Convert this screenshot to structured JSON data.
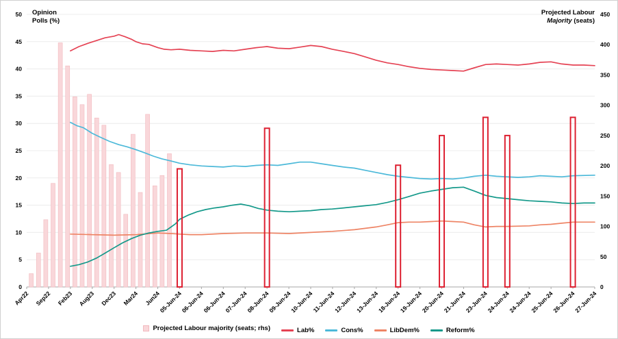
{
  "titles": {
    "left_line1": "Opinion",
    "left_line2": "Polls (%)",
    "right_line1": "Projected Labour",
    "right_line2_italic": "Majority",
    "right_line2_rest": " (seats)"
  },
  "chart_data": {
    "type": "line+bar",
    "left_axis": {
      "title": "Opinion Polls (%)",
      "min": 0,
      "max": 50,
      "ticks": [
        0,
        5,
        10,
        15,
        20,
        25,
        30,
        35,
        40,
        45,
        50
      ]
    },
    "right_axis": {
      "title": "Projected Labour Majority (seats)",
      "min": 0,
      "max": 450,
      "ticks": [
        0,
        50,
        100,
        150,
        200,
        250,
        300,
        350,
        400,
        450
      ]
    },
    "x_tick_labels": [
      "Apr22",
      "Sep22",
      "Feb23",
      "Aug23",
      "Dec23",
      "Mar24",
      "Jun24",
      "05-Jun-24",
      "06-Jun-24",
      "06-Jun-24",
      "07-Jun-24",
      "08-Jun-24",
      "09-Jun-24",
      "10-Jun-24",
      "11-Jun-24",
      "12-Jun-24",
      "13-Jun-24",
      "18-Jun-24",
      "19-Jun-24",
      "20-Jun-24",
      "21-Jun-24",
      "23-Jun-24",
      "24-Jun-24",
      "24-Jun-24",
      "25-Jun-24",
      "26-Jun-24",
      "27-Jun-24"
    ],
    "bars_historical": {
      "name": "Projected Labour majority (seats; rhs)",
      "fill": "#f9d7da",
      "border": "#f2b9be",
      "values": [
        {
          "x": 0.008,
          "seats": 22
        },
        {
          "x": 0.0208,
          "seats": 56
        },
        {
          "x": 0.0336,
          "seats": 111
        },
        {
          "x": 0.0464,
          "seats": 171
        },
        {
          "x": 0.0592,
          "seats": 403
        },
        {
          "x": 0.072,
          "seats": 365
        },
        {
          "x": 0.0848,
          "seats": 314
        },
        {
          "x": 0.0976,
          "seats": 301
        },
        {
          "x": 0.1104,
          "seats": 318
        },
        {
          "x": 0.1232,
          "seats": 279
        },
        {
          "x": 0.136,
          "seats": 267
        },
        {
          "x": 0.1488,
          "seats": 202
        },
        {
          "x": 0.1616,
          "seats": 189
        },
        {
          "x": 0.1744,
          "seats": 120
        },
        {
          "x": 0.1872,
          "seats": 252
        },
        {
          "x": 0.2,
          "seats": 156
        },
        {
          "x": 0.2128,
          "seats": 285
        },
        {
          "x": 0.2256,
          "seats": 167
        },
        {
          "x": 0.2384,
          "seats": 184
        },
        {
          "x": 0.2512,
          "seats": 220
        }
      ]
    },
    "bars_events": {
      "name": "Projected Labour majority (seats; rhs)",
      "color": "#dd1f30",
      "values": [
        {
          "x_tick": 7,
          "date": "05-Jun-24",
          "seats": 195
        },
        {
          "x_tick": 11,
          "date": "08-Jun-24",
          "seats": 262
        },
        {
          "x_tick": 17,
          "date": "18-Jun-24",
          "seats": 201
        },
        {
          "x_tick": 19,
          "date": "20-Jun-24",
          "seats": 250
        },
        {
          "x_tick": 21,
          "date": "23-Jun-24",
          "seats": 280
        },
        {
          "x_tick": 22,
          "date": "24-Jun-24",
          "seats": 250
        },
        {
          "x_tick": 25,
          "date": "26-Jun-24",
          "seats": 280
        }
      ]
    },
    "series": [
      {
        "name": "Lab%",
        "color": "#e54253",
        "points": [
          [
            0.077,
            43.3
          ],
          [
            0.092,
            44.1
          ],
          [
            0.108,
            44.7
          ],
          [
            0.123,
            45.2
          ],
          [
            0.138,
            45.7
          ],
          [
            0.154,
            46.0
          ],
          [
            0.162,
            46.3
          ],
          [
            0.173,
            45.9
          ],
          [
            0.185,
            45.4
          ],
          [
            0.192,
            45.0
          ],
          [
            0.204,
            44.6
          ],
          [
            0.215,
            44.5
          ],
          [
            0.231,
            43.9
          ],
          [
            0.242,
            43.6
          ],
          [
            0.254,
            43.5
          ],
          [
            0.269,
            43.6
          ],
          [
            0.288,
            43.4
          ],
          [
            0.308,
            43.3
          ],
          [
            0.327,
            43.2
          ],
          [
            0.346,
            43.4
          ],
          [
            0.365,
            43.3
          ],
          [
            0.385,
            43.6
          ],
          [
            0.404,
            43.9
          ],
          [
            0.423,
            44.1
          ],
          [
            0.442,
            43.8
          ],
          [
            0.462,
            43.7
          ],
          [
            0.481,
            44.0
          ],
          [
            0.5,
            44.3
          ],
          [
            0.519,
            44.1
          ],
          [
            0.538,
            43.6
          ],
          [
            0.558,
            43.2
          ],
          [
            0.577,
            42.8
          ],
          [
            0.596,
            42.2
          ],
          [
            0.615,
            41.6
          ],
          [
            0.635,
            41.1
          ],
          [
            0.654,
            40.8
          ],
          [
            0.673,
            40.4
          ],
          [
            0.692,
            40.1
          ],
          [
            0.712,
            39.9
          ],
          [
            0.731,
            39.8
          ],
          [
            0.75,
            39.7
          ],
          [
            0.769,
            39.6
          ],
          [
            0.788,
            40.2
          ],
          [
            0.808,
            40.8
          ],
          [
            0.827,
            40.9
          ],
          [
            0.846,
            40.8
          ],
          [
            0.865,
            40.7
          ],
          [
            0.885,
            40.9
          ],
          [
            0.904,
            41.2
          ],
          [
            0.923,
            41.3
          ],
          [
            0.942,
            40.9
          ],
          [
            0.962,
            40.7
          ],
          [
            0.981,
            40.7
          ],
          [
            1.0,
            40.6
          ]
        ]
      },
      {
        "name": "Cons%",
        "color": "#4cb9d9",
        "points": [
          [
            0.077,
            30.2
          ],
          [
            0.088,
            29.6
          ],
          [
            0.1,
            29.2
          ],
          [
            0.115,
            28.2
          ],
          [
            0.131,
            27.4
          ],
          [
            0.146,
            26.7
          ],
          [
            0.162,
            26.1
          ],
          [
            0.177,
            25.7
          ],
          [
            0.192,
            25.2
          ],
          [
            0.208,
            24.6
          ],
          [
            0.223,
            24.0
          ],
          [
            0.238,
            23.5
          ],
          [
            0.254,
            23.1
          ],
          [
            0.269,
            22.7
          ],
          [
            0.288,
            22.4
          ],
          [
            0.308,
            22.2
          ],
          [
            0.327,
            22.1
          ],
          [
            0.346,
            22.0
          ],
          [
            0.365,
            22.2
          ],
          [
            0.385,
            22.1
          ],
          [
            0.404,
            22.3
          ],
          [
            0.423,
            22.4
          ],
          [
            0.442,
            22.3
          ],
          [
            0.462,
            22.6
          ],
          [
            0.481,
            22.9
          ],
          [
            0.5,
            22.9
          ],
          [
            0.519,
            22.6
          ],
          [
            0.538,
            22.3
          ],
          [
            0.558,
            22.0
          ],
          [
            0.577,
            21.8
          ],
          [
            0.596,
            21.4
          ],
          [
            0.615,
            21.0
          ],
          [
            0.635,
            20.6
          ],
          [
            0.654,
            20.3
          ],
          [
            0.673,
            20.1
          ],
          [
            0.692,
            19.9
          ],
          [
            0.712,
            19.8
          ],
          [
            0.731,
            19.9
          ],
          [
            0.75,
            19.8
          ],
          [
            0.769,
            20.0
          ],
          [
            0.788,
            20.3
          ],
          [
            0.808,
            20.5
          ],
          [
            0.827,
            20.3
          ],
          [
            0.846,
            20.2
          ],
          [
            0.865,
            20.1
          ],
          [
            0.885,
            20.2
          ],
          [
            0.904,
            20.4
          ],
          [
            0.923,
            20.3
          ],
          [
            0.942,
            20.2
          ],
          [
            0.962,
            20.4
          ],
          [
            1.0,
            20.5
          ]
        ]
      },
      {
        "name": "LibDem%",
        "color": "#ee8465",
        "points": [
          [
            0.077,
            9.7
          ],
          [
            0.115,
            9.6
          ],
          [
            0.154,
            9.5
          ],
          [
            0.192,
            9.6
          ],
          [
            0.231,
            9.9
          ],
          [
            0.254,
            9.8
          ],
          [
            0.269,
            9.7
          ],
          [
            0.288,
            9.6
          ],
          [
            0.308,
            9.6
          ],
          [
            0.346,
            9.8
          ],
          [
            0.385,
            9.9
          ],
          [
            0.423,
            9.9
          ],
          [
            0.462,
            9.8
          ],
          [
            0.5,
            10.0
          ],
          [
            0.538,
            10.2
          ],
          [
            0.577,
            10.5
          ],
          [
            0.615,
            11.0
          ],
          [
            0.635,
            11.4
          ],
          [
            0.654,
            11.8
          ],
          [
            0.673,
            11.9
          ],
          [
            0.692,
            11.9
          ],
          [
            0.712,
            12.0
          ],
          [
            0.731,
            12.1
          ],
          [
            0.75,
            12.0
          ],
          [
            0.769,
            11.9
          ],
          [
            0.788,
            11.4
          ],
          [
            0.808,
            11.0
          ],
          [
            0.827,
            11.1
          ],
          [
            0.846,
            11.1
          ],
          [
            0.885,
            11.2
          ],
          [
            0.904,
            11.4
          ],
          [
            0.923,
            11.5
          ],
          [
            0.942,
            11.7
          ],
          [
            0.962,
            11.9
          ],
          [
            1.0,
            11.9
          ]
        ]
      },
      {
        "name": "Reform%",
        "color": "#14998a",
        "points": [
          [
            0.077,
            3.8
          ],
          [
            0.092,
            4.1
          ],
          [
            0.108,
            4.6
          ],
          [
            0.123,
            5.3
          ],
          [
            0.138,
            6.2
          ],
          [
            0.154,
            7.2
          ],
          [
            0.169,
            8.1
          ],
          [
            0.185,
            8.9
          ],
          [
            0.2,
            9.5
          ],
          [
            0.215,
            9.9
          ],
          [
            0.231,
            10.2
          ],
          [
            0.246,
            10.4
          ],
          [
            0.262,
            11.6
          ],
          [
            0.269,
            12.4
          ],
          [
            0.285,
            13.2
          ],
          [
            0.3,
            13.8
          ],
          [
            0.315,
            14.2
          ],
          [
            0.331,
            14.5
          ],
          [
            0.346,
            14.7
          ],
          [
            0.362,
            15.0
          ],
          [
            0.377,
            15.2
          ],
          [
            0.392,
            14.9
          ],
          [
            0.408,
            14.4
          ],
          [
            0.423,
            14.1
          ],
          [
            0.442,
            13.9
          ],
          [
            0.462,
            13.8
          ],
          [
            0.481,
            13.9
          ],
          [
            0.5,
            14.0
          ],
          [
            0.519,
            14.2
          ],
          [
            0.538,
            14.3
          ],
          [
            0.558,
            14.5
          ],
          [
            0.577,
            14.7
          ],
          [
            0.596,
            14.9
          ],
          [
            0.615,
            15.1
          ],
          [
            0.635,
            15.5
          ],
          [
            0.654,
            16.0
          ],
          [
            0.673,
            16.6
          ],
          [
            0.692,
            17.2
          ],
          [
            0.712,
            17.6
          ],
          [
            0.731,
            17.9
          ],
          [
            0.75,
            18.2
          ],
          [
            0.769,
            18.3
          ],
          [
            0.788,
            17.6
          ],
          [
            0.808,
            16.8
          ],
          [
            0.827,
            16.4
          ],
          [
            0.846,
            16.2
          ],
          [
            0.865,
            16.0
          ],
          [
            0.885,
            15.8
          ],
          [
            0.904,
            15.7
          ],
          [
            0.923,
            15.6
          ],
          [
            0.942,
            15.4
          ],
          [
            0.962,
            15.3
          ],
          [
            0.981,
            15.4
          ],
          [
            1.0,
            15.4
          ]
        ]
      }
    ],
    "legend": [
      {
        "swatch": "bar",
        "color": "#f9d7da",
        "border": "#f2b9be",
        "label": "Projected Labour majority (seats; rhs)"
      },
      {
        "swatch": "line",
        "color": "#e54253",
        "label": "Lab%"
      },
      {
        "swatch": "line",
        "color": "#4cb9d9",
        "label": "Cons%"
      },
      {
        "swatch": "line",
        "color": "#ee8465",
        "label": "LibDem%"
      },
      {
        "swatch": "line",
        "color": "#14998a",
        "label": "Reform%"
      }
    ],
    "layout": {
      "grid": "horizontal",
      "legend_position": "bottom"
    }
  }
}
